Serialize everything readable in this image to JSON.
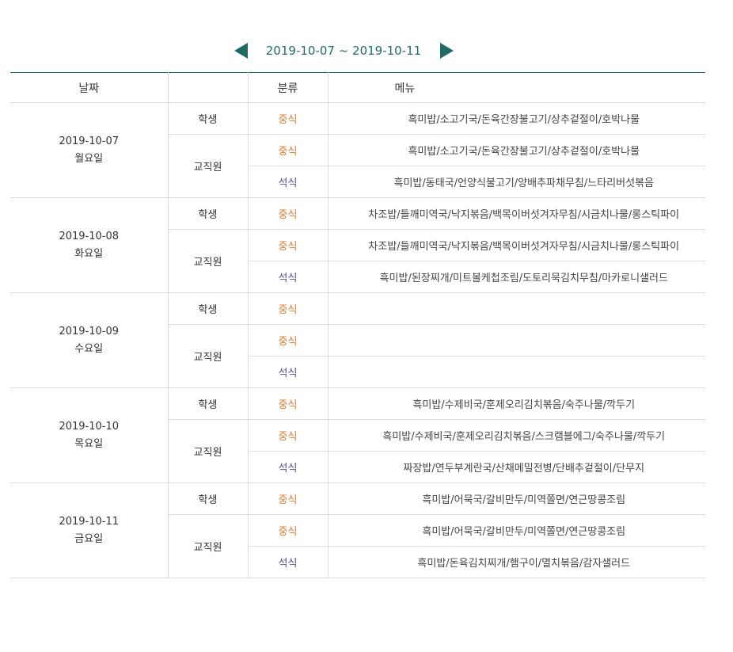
{
  "nav": {
    "range": "2019-10-07 ~ 2019-10-11"
  },
  "colors": {
    "accent": "#1f6b64",
    "lunch": "#e07c2e",
    "dinner": "#5b4c8f",
    "grid": "#dcdcdc"
  },
  "header": {
    "date": "날짜",
    "target": "",
    "category": "분류",
    "menu": "메뉴"
  },
  "days": [
    {
      "date": "2019-10-07",
      "weekday": "월요일",
      "student_label": "학생",
      "staff_label": "교직원",
      "rows": [
        {
          "category": "중식",
          "items": "흑미밥/소고기국/돈육간장불고기/상추겉절이/호박나물"
        },
        {
          "category": "중식",
          "items": "흑미밥/소고기국/돈육간장불고기/상추겉절이/호박나물"
        },
        {
          "category": "석식",
          "items": "흑미밥/동태국/언양식불고기/양배추파채무침/느타리버섯볶음"
        }
      ]
    },
    {
      "date": "2019-10-08",
      "weekday": "화요일",
      "student_label": "학생",
      "staff_label": "교직원",
      "rows": [
        {
          "category": "중식",
          "items": "차조밥/들깨미역국/낙지볶음/백목이버섯겨자무침/시금치나물/롱스틱파이"
        },
        {
          "category": "중식",
          "items": "차조밥/들깨미역국/낙지볶음/백목이버섯겨자무침/시금치나물/롱스틱파이"
        },
        {
          "category": "석식",
          "items": "흑미밥/된장찌개/미트볼케첩조림/도토리묵김치무침/마카로니샐러드"
        }
      ]
    },
    {
      "date": "2019-10-09",
      "weekday": "수요일",
      "student_label": "학생",
      "staff_label": "교직원",
      "rows": [
        {
          "category": "중식",
          "items": ""
        },
        {
          "category": "중식",
          "items": ""
        },
        {
          "category": "석식",
          "items": ""
        }
      ]
    },
    {
      "date": "2019-10-10",
      "weekday": "목요일",
      "student_label": "학생",
      "staff_label": "교직원",
      "rows": [
        {
          "category": "중식",
          "items": "흑미밥/수제비국/훈제오리김치볶음/숙주나물/깍두기"
        },
        {
          "category": "중식",
          "items": "흑미밥/수제비국/훈제오리김치볶음/스크램블에그/숙주나물/깍두기"
        },
        {
          "category": "석식",
          "items": "짜장밥/연두부계란국/산채메밀전병/단배추겉절이/단무지"
        }
      ]
    },
    {
      "date": "2019-10-11",
      "weekday": "금요일",
      "student_label": "학생",
      "staff_label": "교직원",
      "rows": [
        {
          "category": "중식",
          "items": "흑미밥/어묵국/갈비만두/미역쫄면/연근땅콩조림"
        },
        {
          "category": "중식",
          "items": "흑미밥/어묵국/갈비만두/미역쫄면/연근땅콩조림"
        },
        {
          "category": "석식",
          "items": "흑미밥/돈육김치찌개/햄구이/멸치볶음/감자샐러드"
        }
      ]
    }
  ]
}
